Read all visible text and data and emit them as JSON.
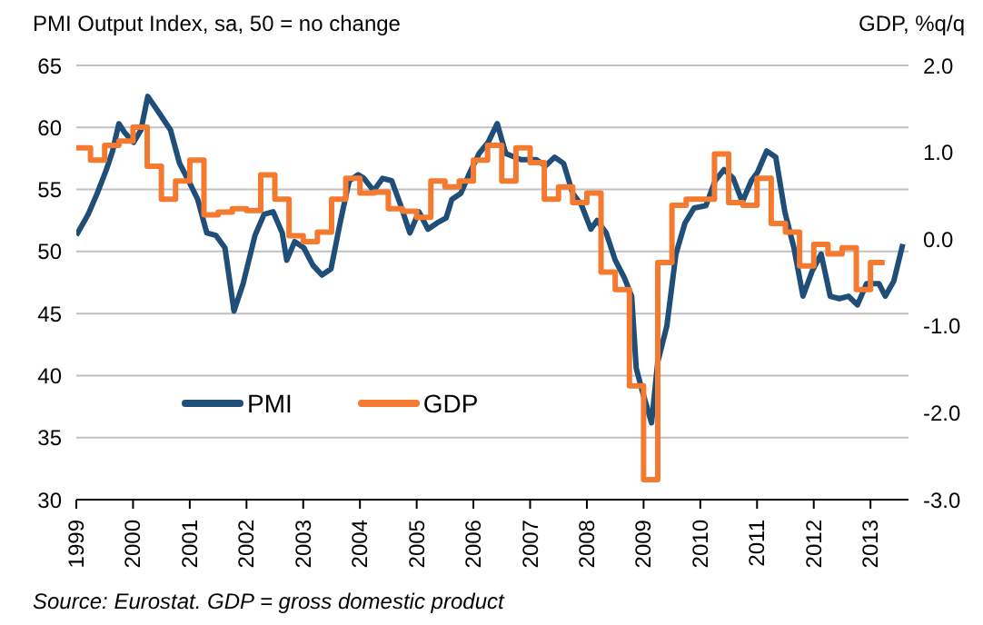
{
  "chart_data": {
    "type": "line",
    "ylabel": "PMI Output Index, sa, 50 = no change",
    "y2label": "GDP, %q/q",
    "annotations": [
      "Source: Eurostat. GDP = gross domestic product"
    ],
    "xlim": [
      1999,
      2013.67
    ],
    "xticks": [
      1999,
      2000,
      2001,
      2002,
      2003,
      2004,
      2005,
      2006,
      2007,
      2008,
      2009,
      2010,
      2011,
      2012,
      2013
    ],
    "ylim": [
      30,
      65
    ],
    "yticks": [
      30,
      35,
      40,
      45,
      50,
      55,
      60,
      65
    ],
    "y2lim": [
      -3,
      2
    ],
    "y2ticks": [
      {
        "value": -3,
        "label": "-3.0"
      },
      {
        "value": -2,
        "label": "-2.0"
      },
      {
        "value": -1,
        "label": "-1.0"
      },
      {
        "value": 0,
        "label": "0.0"
      },
      {
        "value": 1,
        "label": "1.0"
      },
      {
        "value": 2,
        "label": "2.0"
      }
    ],
    "grid": "y",
    "legend": "bottom left",
    "marker": "none",
    "line_style": "solid",
    "series": [
      {
        "name": "PMI",
        "type": "line",
        "color": "#1f4e79",
        "x": [
          1999.0,
          1999.21,
          1999.37,
          1999.53,
          1999.64,
          1999.75,
          1999.85,
          2000.01,
          2000.14,
          2000.26,
          2000.44,
          2000.66,
          2000.82,
          2000.98,
          2001.14,
          2001.3,
          2001.46,
          2001.62,
          2001.78,
          2001.94,
          2002.15,
          2002.31,
          2002.47,
          2002.63,
          2002.71,
          2002.85,
          2003.01,
          2003.17,
          2003.33,
          2003.49,
          2003.65,
          2003.81,
          2003.97,
          2004.07,
          2004.24,
          2004.4,
          2004.56,
          2004.72,
          2004.88,
          2005.04,
          2005.2,
          2005.36,
          2005.52,
          2005.62,
          2005.78,
          2005.94,
          2006.1,
          2006.26,
          2006.42,
          2006.57,
          2006.84,
          2007.11,
          2007.27,
          2007.43,
          2007.59,
          2007.75,
          2007.91,
          2008.07,
          2008.18,
          2008.34,
          2008.5,
          2008.66,
          2008.79,
          2008.87,
          2008.98,
          2009.14,
          2009.25,
          2009.41,
          2009.57,
          2009.73,
          2009.89,
          2010.1,
          2010.26,
          2010.42,
          2010.58,
          2010.74,
          2010.9,
          2011.01,
          2011.17,
          2011.33,
          2011.49,
          2011.65,
          2011.81,
          2011.97,
          2012.13,
          2012.29,
          2012.45,
          2012.61,
          2012.77,
          2012.93,
          2013.15,
          2013.26,
          2013.41,
          2013.57
        ],
        "values": [
          51.3,
          53.0,
          54.7,
          56.6,
          58.1,
          60.3,
          59.6,
          58.8,
          59.8,
          62.5,
          61.3,
          59.8,
          57.1,
          55.7,
          54.2,
          51.5,
          51.3,
          50.3,
          45.2,
          47.4,
          51.3,
          53.0,
          53.2,
          51.5,
          49.3,
          50.8,
          50.3,
          48.9,
          48.1,
          48.6,
          52.3,
          55.7,
          56.2,
          55.9,
          54.9,
          55.9,
          55.7,
          53.7,
          51.5,
          53.2,
          51.8,
          52.3,
          52.7,
          54.2,
          54.7,
          56.4,
          57.9,
          58.8,
          60.3,
          57.9,
          57.4,
          57.4,
          56.9,
          57.6,
          57.1,
          54.7,
          53.7,
          51.8,
          52.5,
          51.5,
          49.3,
          47.9,
          46.4,
          40.6,
          38.7,
          36.2,
          41.1,
          44.0,
          49.8,
          52.3,
          53.5,
          53.7,
          55.7,
          56.6,
          55.9,
          54.0,
          55.7,
          56.4,
          58.1,
          57.6,
          53.2,
          50.3,
          46.4,
          48.4,
          49.8,
          46.4,
          46.2,
          46.4,
          45.7,
          47.4,
          47.4,
          46.4,
          47.6,
          50.6
        ]
      },
      {
        "name": "GDP",
        "type": "step",
        "axis": "y2",
        "color": "#f47a30",
        "x": [
          1999.0,
          1999.25,
          1999.5,
          1999.75,
          2000.0,
          2000.25,
          2000.5,
          2000.75,
          2001.0,
          2001.25,
          2001.5,
          2001.75,
          2002.0,
          2002.25,
          2002.5,
          2002.75,
          2003.0,
          2003.25,
          2003.5,
          2003.75,
          2004.0,
          2004.25,
          2004.5,
          2004.75,
          2005.0,
          2005.25,
          2005.5,
          2005.75,
          2006.0,
          2006.25,
          2006.5,
          2006.75,
          2007.0,
          2007.25,
          2007.5,
          2007.75,
          2008.0,
          2008.25,
          2008.5,
          2008.75,
          2009.0,
          2009.25,
          2009.5,
          2009.75,
          2010.0,
          2010.25,
          2010.5,
          2010.75,
          2011.0,
          2011.25,
          2011.5,
          2011.75,
          2012.0,
          2012.25,
          2012.5,
          2012.75,
          2013.0,
          2013.25
        ],
        "values": [
          1.05,
          0.91,
          1.08,
          1.13,
          1.29,
          0.84,
          0.46,
          0.67,
          0.91,
          0.28,
          0.31,
          0.35,
          0.33,
          0.74,
          0.46,
          0.04,
          -0.03,
          0.08,
          0.46,
          0.7,
          0.53,
          0.54,
          0.35,
          0.32,
          0.25,
          0.67,
          0.6,
          0.67,
          0.91,
          1.08,
          0.67,
          1.05,
          0.88,
          0.46,
          0.6,
          0.42,
          0.53,
          -0.38,
          -0.58,
          -1.69,
          -2.77,
          -0.27,
          0.39,
          0.46,
          0.46,
          0.98,
          0.42,
          0.39,
          0.7,
          0.18,
          0.08,
          -0.31,
          -0.06,
          -0.17,
          -0.1,
          -0.58,
          -0.27,
          -0.27
        ]
      }
    ]
  }
}
